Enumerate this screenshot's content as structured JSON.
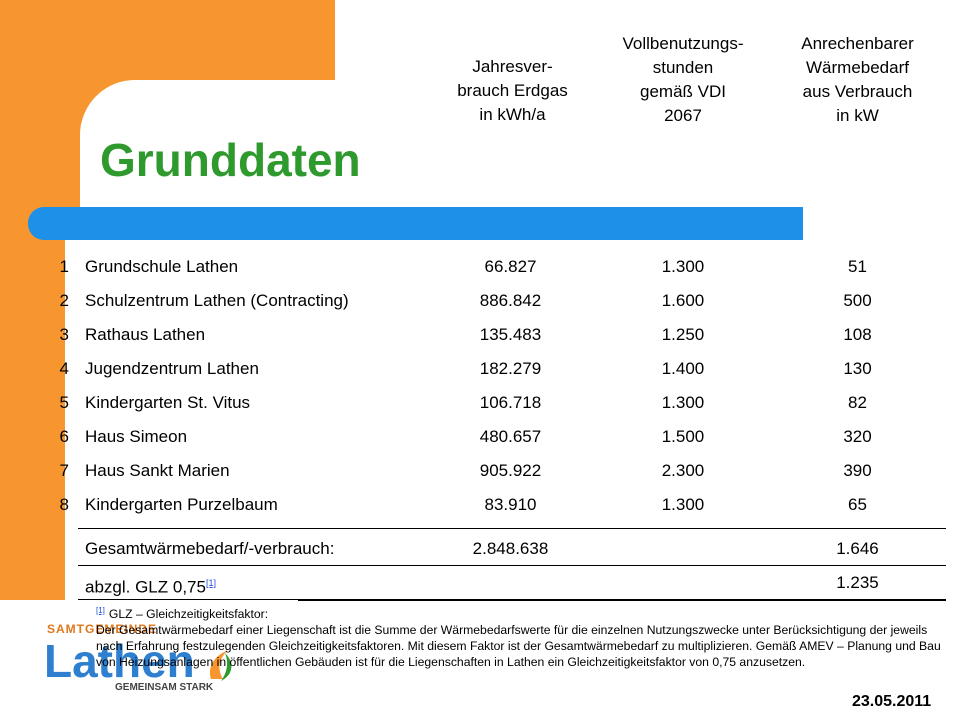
{
  "slide": {
    "title": "Grunddaten",
    "date": "23.05.2011"
  },
  "columns": [
    "Jahresver-\nbrauch Erdgas\nin kWh/a",
    "Vollbenutzungs-\nstunden\ngemäß VDI\n2067",
    "Anrechenbarer\nWärmebedarf\naus Verbrauch\nin kW"
  ],
  "rows": [
    {
      "num": "1",
      "name": "Grundschule Lathen",
      "consumption": "66.827",
      "hours": "1.300",
      "demand": "51"
    },
    {
      "num": "2",
      "name": "Schulzentrum Lathen (Contracting)",
      "consumption": "886.842",
      "hours": "1.600",
      "demand": "500"
    },
    {
      "num": "3",
      "name": "Rathaus Lathen",
      "consumption": "135.483",
      "hours": "1.250",
      "demand": "108"
    },
    {
      "num": "4",
      "name": "Jugendzentrum Lathen",
      "consumption": "182.279",
      "hours": "1.400",
      "demand": "130"
    },
    {
      "num": "5",
      "name": "Kindergarten St. Vitus",
      "consumption": "106.718",
      "hours": "1.300",
      "demand": "82"
    },
    {
      "num": "6",
      "name": "Haus Simeon",
      "consumption": "480.657",
      "hours": "1.500",
      "demand": "320"
    },
    {
      "num": "7",
      "name": "Haus Sankt Marien",
      "consumption": "905.922",
      "hours": "2.300",
      "demand": "390"
    },
    {
      "num": "8",
      "name": "Kindergarten Purzelbaum",
      "consumption": "83.910",
      "hours": "1.300",
      "demand": "65"
    }
  ],
  "totals": {
    "label": "Gesamtwärmebedarf/-verbrauch:",
    "consumption": "2.848.638",
    "demand": "1.646"
  },
  "glz": {
    "label": "abzgl. GLZ 0,75",
    "ref": "[1]",
    "demand": "1.235"
  },
  "footnote": {
    "ref": "[1]",
    "heading": "GLZ – Gleichzeitigkeitsfaktor:",
    "text": "Der Gesamtwärmebedarf einer Liegenschaft ist die Summe der Wärmebedarfswerte für die einzelnen Nutzungszwecke unter Berücksichtigung der jeweils nach Erfahrung festzulegenden Gleichzeitigkeitsfaktoren. Mit diesem Faktor ist der Gesamtwärmebedarf zu multiplizieren. Gemäß AMEV – Planung und Bau von Heizungsanlagen in öffentlichen Gebäuden ist für die Liegenschaften in Lathen ein Gleichzeitigkeitsfaktor von 0,75 anzusetzen."
  },
  "logo": {
    "top": "SAMTGEMEINDE",
    "main": "Lathen",
    "bottom": "GEMEINSAM STARK"
  },
  "colors": {
    "orange": "#F7962E",
    "blue": "#1E90E8",
    "title_green": "#2E9A2E"
  }
}
